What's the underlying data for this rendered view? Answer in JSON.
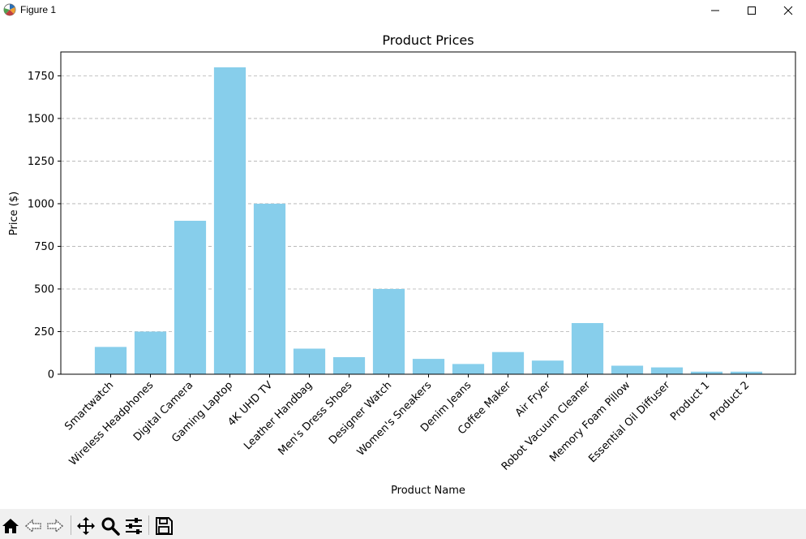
{
  "window": {
    "title": "Figure 1",
    "controls": [
      "minimize",
      "maximize",
      "close"
    ]
  },
  "toolbar": {
    "buttons": [
      {
        "name": "home",
        "icon": "home-icon"
      },
      {
        "name": "back",
        "icon": "arrow-left-icon"
      },
      {
        "name": "forward",
        "icon": "arrow-right-icon"
      },
      {
        "name": "pan",
        "icon": "move-icon"
      },
      {
        "name": "zoom",
        "icon": "magnifier-icon"
      },
      {
        "name": "configure",
        "icon": "sliders-icon"
      },
      {
        "name": "save",
        "icon": "floppy-disk-icon"
      }
    ]
  },
  "chart_data": {
    "type": "bar",
    "title": "Product Prices",
    "xlabel": "Product Name",
    "ylabel": "Price ($)",
    "categories": [
      "Smartwatch",
      "Wireless Headphones",
      "Digital Camera",
      "Gaming Laptop",
      "4K UHD TV",
      "Leather Handbag",
      "Men's Dress Shoes",
      "Designer Watch",
      "Women's Sneakers",
      "Denim Jeans",
      "Coffee Maker",
      "Air Fryer",
      "Robot Vacuum Cleaner",
      "Memory Foam Pillow",
      "Essential Oil Diffuser",
      "Product 1",
      "Product 2"
    ],
    "values": [
      160,
      250,
      900,
      1800,
      1000,
      150,
      100,
      500,
      90,
      60,
      130,
      80,
      300,
      50,
      40,
      15,
      15
    ],
    "ylim": [
      0,
      1890
    ],
    "yticks": [
      0,
      250,
      500,
      750,
      1000,
      1250,
      1500,
      1750
    ],
    "grid": {
      "axis": "y",
      "style": "dashed"
    },
    "bar_color": "#87ceeb",
    "xtick_rotation": 45
  }
}
